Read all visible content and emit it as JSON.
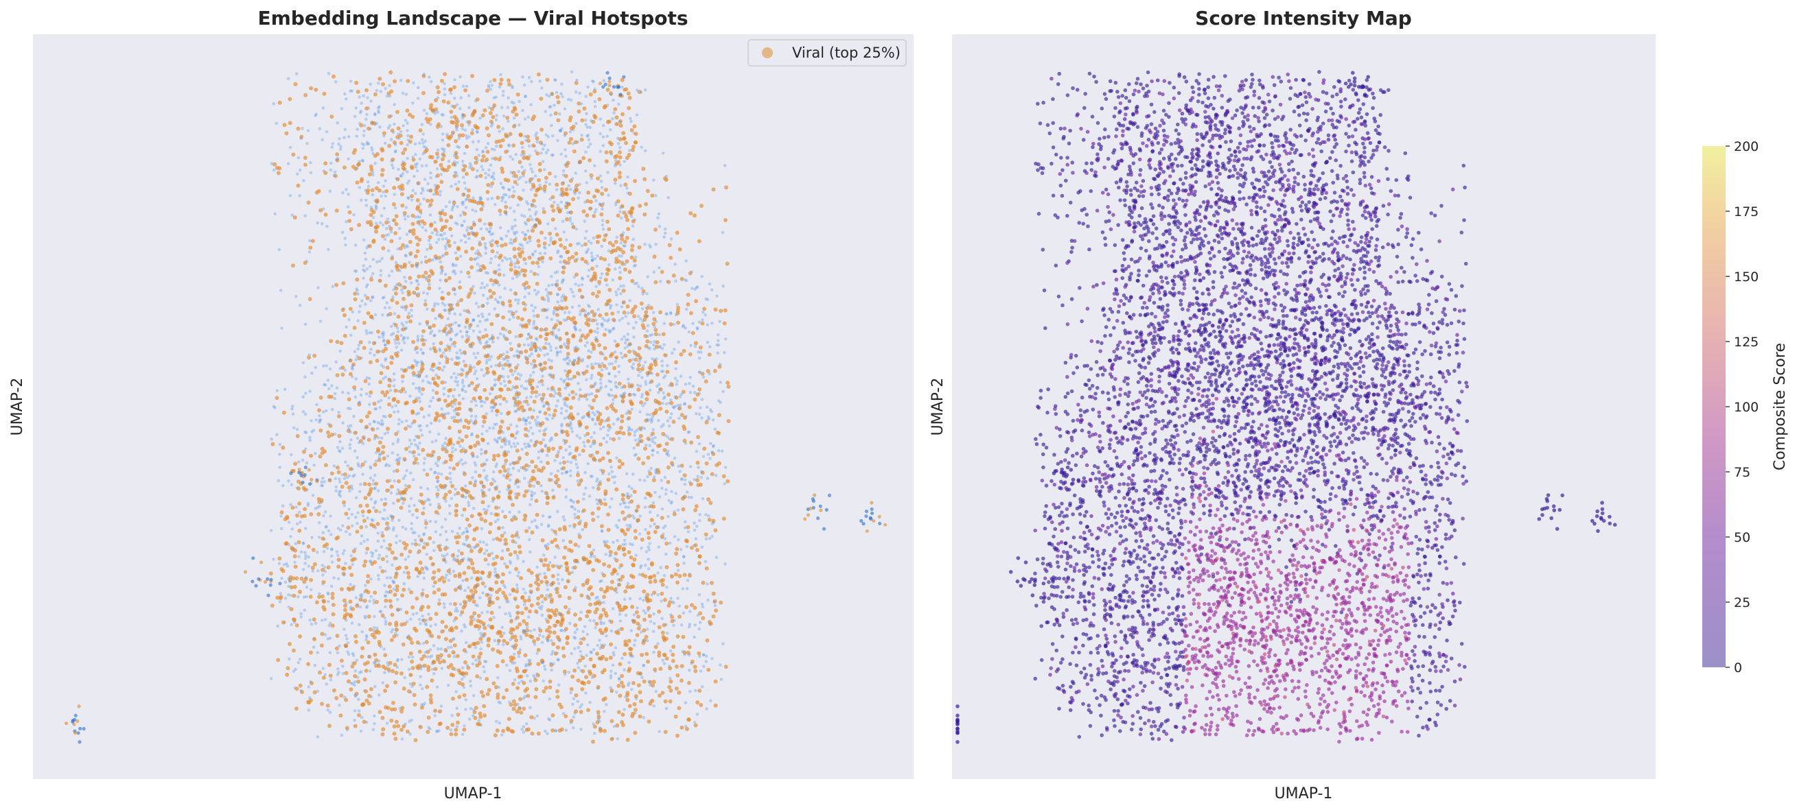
{
  "chart_data": [
    {
      "type": "scatter",
      "title": "Embedding Landscape — Viral Hotspots",
      "xlabel": "UMAP-1",
      "ylabel": "UMAP-2",
      "grid": false,
      "ticks_visible": false,
      "legend": {
        "placement": "top-right",
        "entries": [
          "Viral (top 25%)"
        ]
      },
      "series": [
        {
          "color": "#4a90e2",
          "alpha": 0.3,
          "description_of_distribution": "dense cloud covering the main landmass"
        },
        {
          "name": "Viral (top 25%)",
          "color": "#e08a2e",
          "alpha": 0.6
        }
      ],
      "clusters": [
        {
          "x": 0.36,
          "y": 0.86,
          "share": 0.05
        },
        {
          "x": 0.5,
          "y": 0.85,
          "share": 0.05
        },
        {
          "x": 0.47,
          "y": 0.73,
          "share": 0.06
        },
        {
          "x": 0.62,
          "y": 0.77,
          "share": 0.05
        },
        {
          "x": 0.52,
          "y": 0.58,
          "share": 0.08
        },
        {
          "x": 0.66,
          "y": 0.58,
          "share": 0.07
        },
        {
          "x": 0.4,
          "y": 0.48,
          "share": 0.07
        },
        {
          "x": 0.55,
          "y": 0.45,
          "share": 0.08
        },
        {
          "x": 0.7,
          "y": 0.45,
          "share": 0.06
        },
        {
          "x": 0.4,
          "y": 0.3,
          "share": 0.06
        },
        {
          "x": 0.57,
          "y": 0.22,
          "share": 0.08
        },
        {
          "x": 0.68,
          "y": 0.2,
          "share": 0.07
        },
        {
          "x": 0.47,
          "y": 0.16,
          "share": 0.06
        },
        {
          "x": 0.32,
          "y": 0.24,
          "share": 0.04
        },
        {
          "x": 0.75,
          "y": 0.55,
          "share": 0.04
        }
      ],
      "outliers": [
        {
          "x": 0.26,
          "y": 0.27
        },
        {
          "x": 0.05,
          "y": 0.07
        },
        {
          "x": 0.95,
          "y": 0.35
        },
        {
          "x": 0.89,
          "y": 0.36
        },
        {
          "x": 0.66,
          "y": 0.93
        },
        {
          "x": 0.31,
          "y": 0.41
        }
      ]
    },
    {
      "type": "scatter",
      "title": "Score Intensity Map",
      "xlabel": "UMAP-1",
      "ylabel": "UMAP-2",
      "grid": false,
      "ticks_visible": false,
      "colormap": "plasma",
      "colorbar": {
        "label": "Composite Score",
        "min": 0,
        "max": 200,
        "ticks": [
          "0",
          "25",
          "50",
          "75",
          "100",
          "125",
          "150",
          "175",
          "200"
        ]
      },
      "note_on_values": "most points score low (dark purple); higher scores concentrated in the lower-middle region"
    }
  ]
}
